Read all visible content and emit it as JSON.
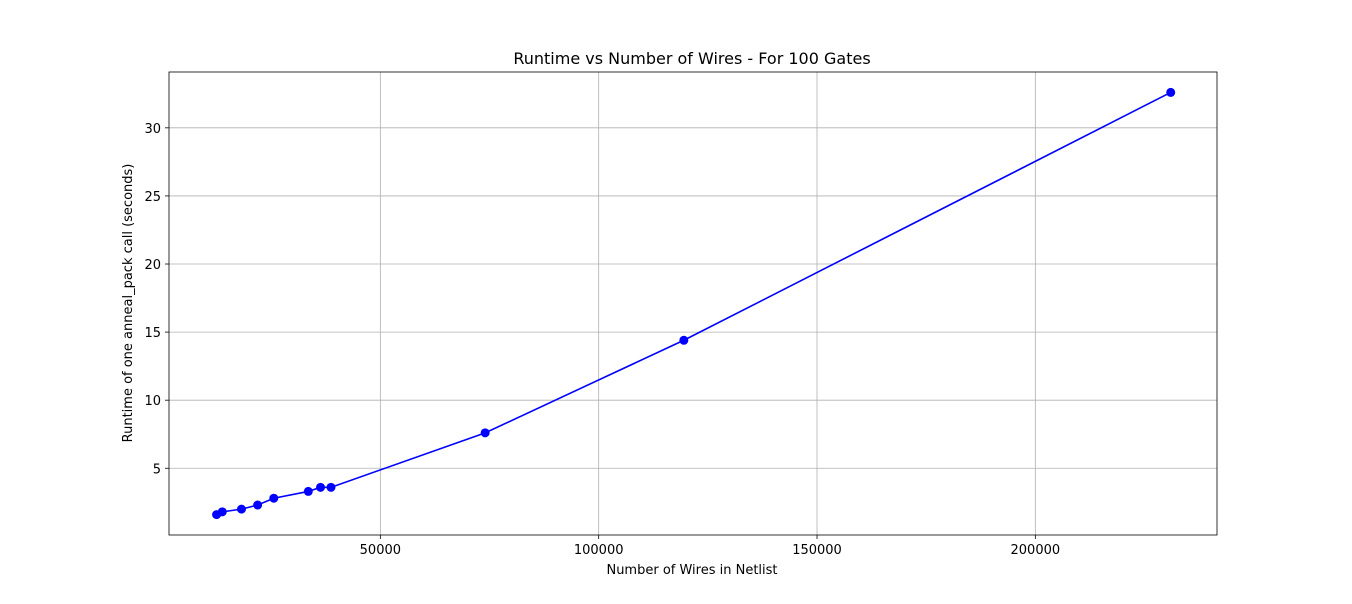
{
  "chart_data": {
    "type": "line",
    "title": "Runtime vs Number of Wires - For 100 Gates",
    "xlabel": "Number of Wires in Netlist",
    "ylabel": "Runtime of one anneal_pack call (seconds)",
    "xlim": [
      1600,
      241600
    ],
    "ylim": [
      0.1,
      34.1
    ],
    "xticks": [
      50000,
      100000,
      150000,
      200000
    ],
    "xtick_labels": [
      "50000",
      "100000",
      "150000",
      "200000"
    ],
    "yticks": [
      5,
      10,
      15,
      20,
      25,
      30
    ],
    "ytick_labels": [
      "5",
      "10",
      "15",
      "20",
      "25",
      "30"
    ],
    "grid": true,
    "legend": "none",
    "series": [
      {
        "color": "#0000ff",
        "marker": "circle",
        "x": [
          12500,
          13800,
          18200,
          21900,
          25600,
          33500,
          36300,
          38700,
          74000,
          119500,
          231000
        ],
        "y": [
          1.6,
          1.8,
          2.0,
          2.3,
          2.8,
          3.3,
          3.6,
          3.6,
          7.6,
          14.4,
          32.6
        ]
      }
    ]
  }
}
